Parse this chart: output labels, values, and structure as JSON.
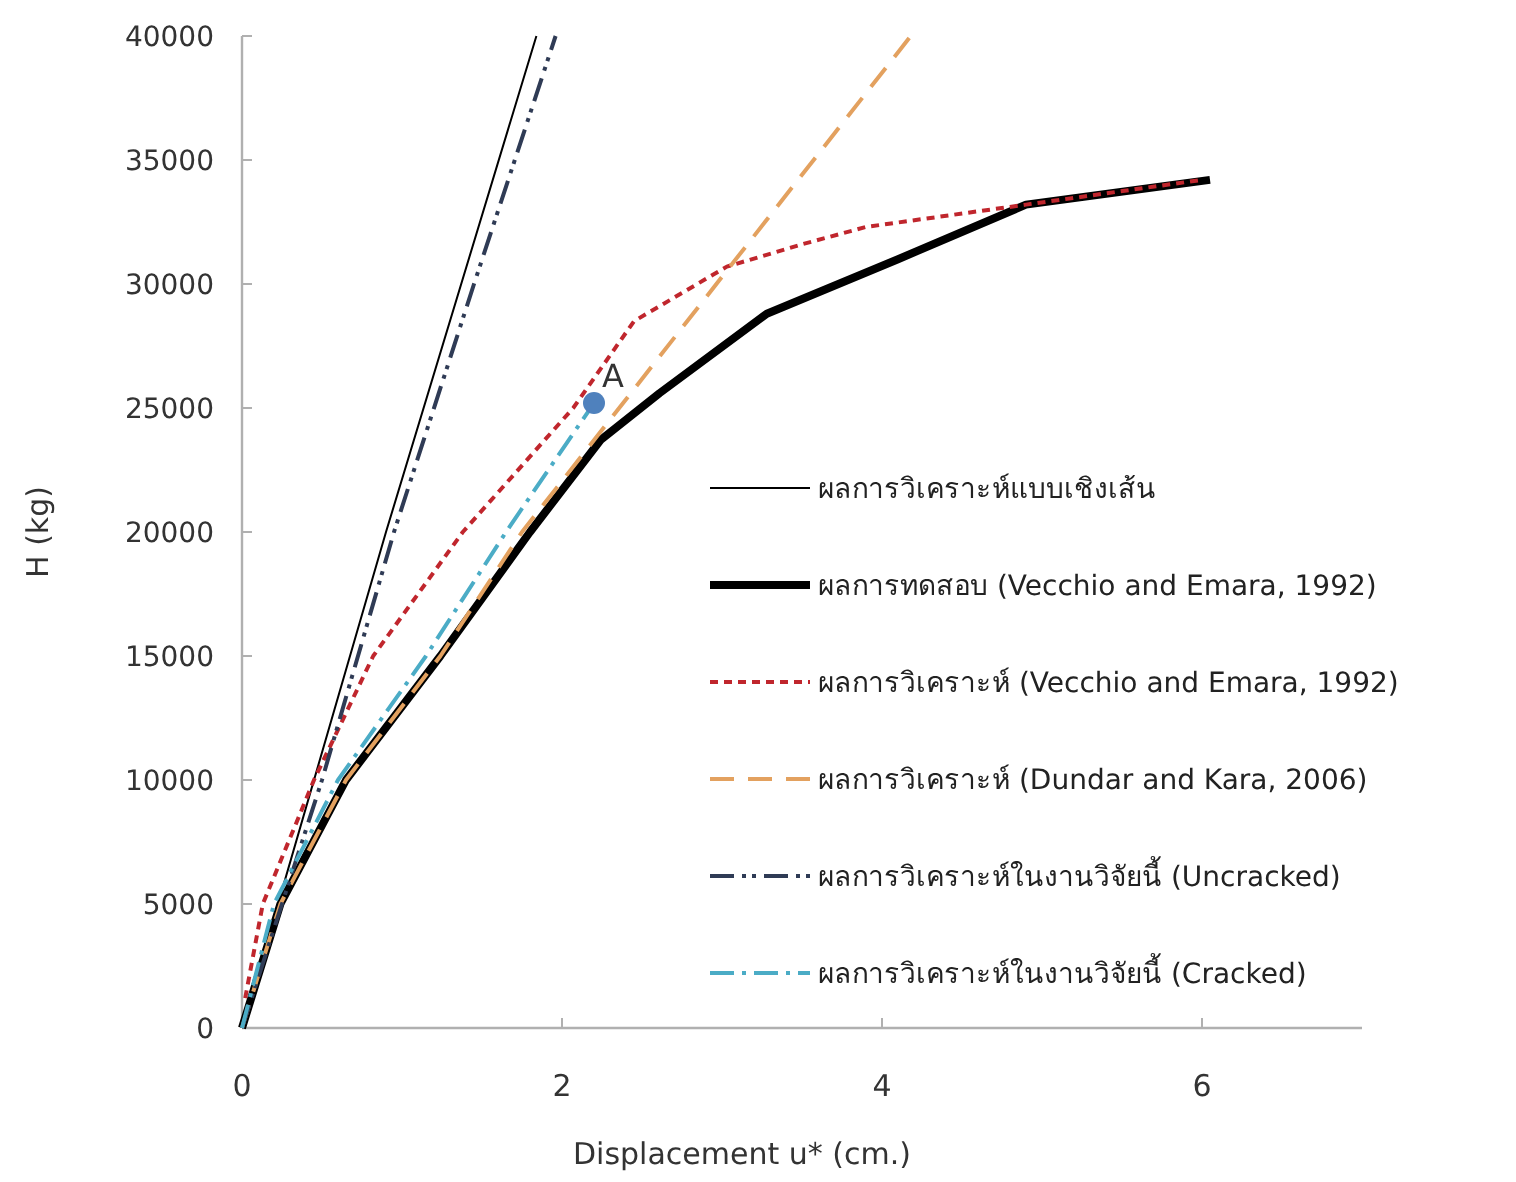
{
  "chart_data": {
    "type": "line",
    "xlabel": "Displacement  u* (cm.)",
    "ylabel": "H (kg)",
    "xlim": [
      0,
      7
    ],
    "xticks": [
      0,
      2,
      4,
      6
    ],
    "ylim": [
      0,
      40000
    ],
    "yticks": [
      0,
      5000,
      10000,
      15000,
      20000,
      25000,
      30000,
      35000,
      40000
    ],
    "grid": false,
    "legend": "right",
    "series": [
      {
        "name": "ผลการวิเคราะห์แบบเชิงเส้น",
        "color": "#000000",
        "line_style": "solid",
        "x": [
          0,
          0.9,
          1.84
        ],
        "values": [
          0,
          20000,
          40000
        ]
      },
      {
        "name": "ผลการทดสอบ (Vecchio and Emara, 1992)",
        "color": "#000000",
        "line_style": "solid",
        "x": [
          0,
          0.24,
          0.65,
          1.24,
          1.8,
          2.24,
          2.61,
          3.28,
          4.1,
          4.9,
          6.05
        ],
        "values": [
          0,
          5000,
          10000,
          15000,
          20000,
          23700,
          25600,
          28800,
          31000,
          33200,
          34200
        ]
      },
      {
        "name": "ผลการวิเคราะห์ (Vecchio and Emara, 1992)",
        "color": "#c0262d",
        "line_style": "dotted",
        "x": [
          0.02,
          0.13,
          0.45,
          0.82,
          1.38,
          2.07,
          2.45,
          3.03,
          3.5,
          3.9,
          4.9,
          6.0
        ],
        "values": [
          1200,
          5000,
          10000,
          15000,
          20000,
          25000,
          28500,
          30700,
          31600,
          32300,
          33200,
          34200
        ]
      },
      {
        "name": "ผลการวิเคราะห์ (Dundar and Kara, 2006)",
        "color": "#e3a15f",
        "line_style": "dashed",
        "x": [
          0,
          0.24,
          0.65,
          1.24,
          1.75,
          4.18
        ],
        "values": [
          0,
          5000,
          10000,
          15000,
          20000,
          40000
        ]
      },
      {
        "name": "ผลการวิเคราะห์ในงานวิจัยนี้ (Uncracked)",
        "color": "#2f3b55",
        "line_style": "dashdotdot",
        "x": [
          0,
          0.5,
          0.95,
          1.45,
          1.96
        ],
        "values": [
          0,
          10000,
          20000,
          30000,
          40000
        ]
      },
      {
        "name": "ผลการวิเคราะห์ในงานวิจัยนี้ (Cracked)",
        "color": "#4bacc6",
        "line_style": "dashdot",
        "x": [
          0,
          0.2,
          0.6,
          1.15,
          1.65,
          2.2
        ],
        "values": [
          0,
          5000,
          10000,
          15000,
          20000,
          25200
        ]
      },
      {
        "type": "scatter",
        "marker": "circle",
        "color": "#4f81bd",
        "x": [
          2.2
        ],
        "values": [
          25200
        ]
      }
    ],
    "annotations": [
      {
        "text": "A",
        "x": 2.2,
        "y": 25200
      }
    ]
  }
}
